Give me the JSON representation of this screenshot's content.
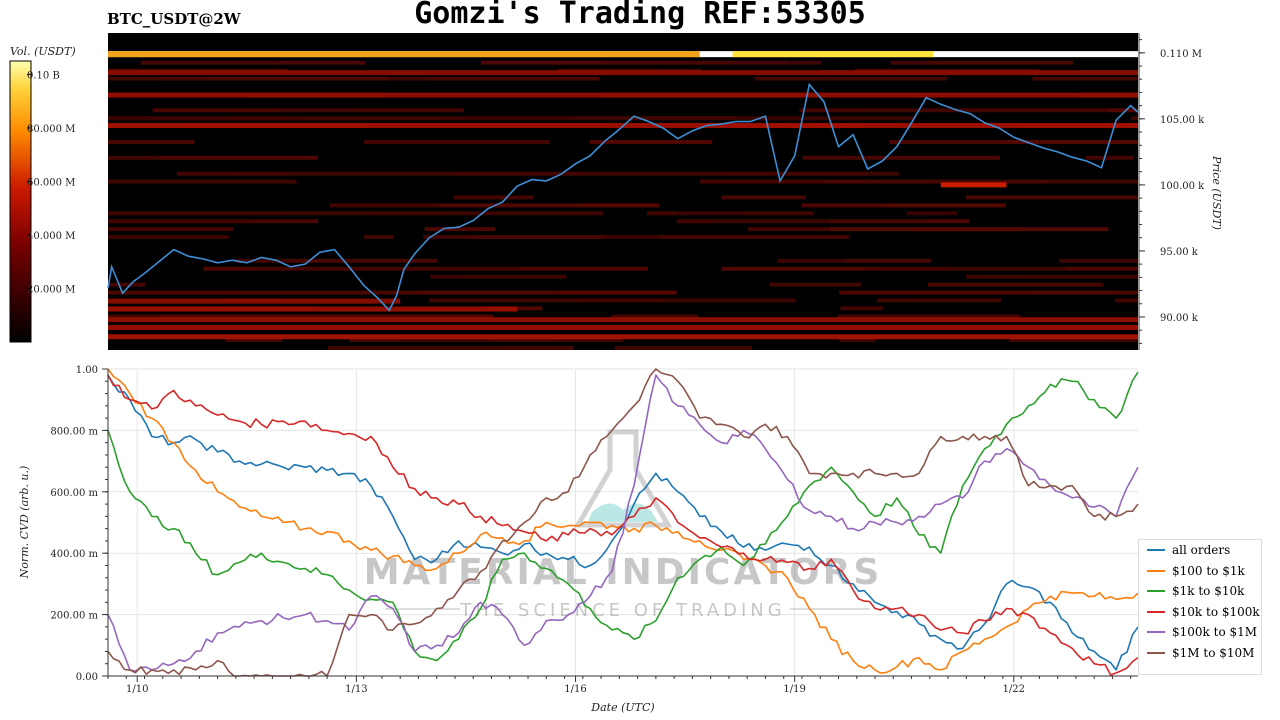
{
  "header": {
    "title": "Gomzi's Trading REF:53305",
    "symbol": "BTC_USDT@2W"
  },
  "colors": {
    "price_line": "#3c8fd6",
    "heatmap_bg": "#000000",
    "colorbar_low": "#000000",
    "colorbar_mid": "#cc1100",
    "colorbar_high": "#ffff66"
  },
  "watermark": {
    "line1": "MATERIAL INDICATORS",
    "line2": "THE SCIENCE OF TRADING"
  },
  "chart_data": [
    {
      "type": "heatmap",
      "name": "orderbook-heatmap",
      "title": "",
      "ylabel": "Price (USDT)",
      "ylim": [
        87500,
        111500
      ],
      "y_ticks": [
        90000,
        95000,
        100000,
        105000,
        110000
      ],
      "y_tick_labels": [
        "90.00 k",
        "95.00 k",
        "100.00 k",
        "105.00 k",
        "0.110 M"
      ],
      "colorbar": {
        "label": "Vol. (USDT)",
        "range": [
          0,
          105000000
        ],
        "ticks": [
          20000000,
          40000000,
          60000000,
          80000000,
          100000000
        ],
        "tick_labels": [
          "20.000 M",
          "40.000 M",
          "60.000 M",
          "80.000 M",
          "0.10 B"
        ]
      },
      "price_series": {
        "name": "",
        "x": [
          0,
          0.05,
          0.2,
          0.35,
          0.5,
          0.7,
          0.9,
          1.1,
          1.3,
          1.5,
          1.7,
          1.9,
          2.1,
          2.3,
          2.5,
          2.7,
          2.9,
          3.1,
          3.3,
          3.5,
          3.7,
          3.85,
          3.95,
          4.05,
          4.2,
          4.4,
          4.6,
          4.8,
          5.0,
          5.2,
          5.4,
          5.6,
          5.8,
          6.0,
          6.2,
          6.4,
          6.6,
          6.8,
          7.0,
          7.2,
          7.4,
          7.6,
          7.8,
          8.0,
          8.2,
          8.4,
          8.6,
          8.8,
          9.0,
          9.2,
          9.4,
          9.6,
          9.8,
          10.0,
          10.2,
          10.4,
          10.6,
          10.8,
          11.0,
          11.2,
          11.4,
          11.6,
          11.8,
          12.0,
          12.2,
          12.4,
          12.6,
          12.8,
          13.0,
          13.2,
          13.4,
          13.6,
          13.8,
          14.0,
          14.1
        ],
        "y": [
          92200,
          93800,
          91800,
          92700,
          93300,
          94200,
          95100,
          94600,
          94400,
          94100,
          94300,
          94100,
          94500,
          94300,
          93800,
          94000,
          94900,
          95100,
          93800,
          92400,
          91400,
          90500,
          91600,
          93600,
          94800,
          96000,
          96700,
          96800,
          97300,
          98200,
          98700,
          99900,
          100400,
          100300,
          100800,
          101600,
          102200,
          103300,
          104200,
          105200,
          104800,
          104300,
          103500,
          104100,
          104500,
          104600,
          104800,
          104800,
          105200,
          100300,
          102200,
          107600,
          106300,
          102900,
          103800,
          101200,
          101800,
          102900,
          104700,
          106600,
          106100,
          105700,
          105400,
          104700,
          104300,
          103600,
          103200,
          102800,
          102500,
          102100,
          101800,
          101300,
          104900,
          106000,
          105500
        ]
      },
      "top_band_price": 109900,
      "bands": [
        {
          "price": 88500,
          "start": 0,
          "end": 14.1,
          "intensity": 0.55
        },
        {
          "price": 89200,
          "start": 0,
          "end": 14.1,
          "intensity": 0.45
        },
        {
          "price": 89800,
          "start": 0,
          "end": 14.1,
          "intensity": 0.4
        },
        {
          "price": 90600,
          "start": 0,
          "end": 5.6,
          "intensity": 0.45
        },
        {
          "price": 91200,
          "start": 0,
          "end": 4.0,
          "intensity": 0.35
        },
        {
          "price": 100000,
          "start": 11.4,
          "end": 12.3,
          "intensity": 0.85
        },
        {
          "price": 104500,
          "start": 0,
          "end": 14.1,
          "intensity": 0.5
        },
        {
          "price": 106800,
          "start": 0,
          "end": 14.1,
          "intensity": 0.4
        },
        {
          "price": 108500,
          "start": 0,
          "end": 14.1,
          "intensity": 0.35
        }
      ]
    },
    {
      "type": "line",
      "name": "norm-cvd",
      "title": "",
      "xlabel": "Date (UTC)",
      "ylabel": "Norm. CVD (arb. u.)",
      "xlim": [
        0,
        14.1
      ],
      "ylim": [
        0,
        1
      ],
      "x_ticks": [
        0.4,
        3.4,
        6.4,
        9.4,
        12.4
      ],
      "x_tick_labels": [
        "1/10",
        "1/13",
        "1/16",
        "1/19",
        "1/22"
      ],
      "y_ticks": [
        0,
        0.2,
        0.4,
        0.6,
        0.8,
        1.0
      ],
      "y_tick_labels": [
        "0.00",
        "200.00 m",
        "400.00 m",
        "600.00 m",
        "800.00 m",
        "1.00"
      ],
      "grid": true,
      "legend": "right",
      "series": [
        {
          "name": "all orders",
          "color": "#1f77b4",
          "x": [
            0,
            0.3,
            0.6,
            0.9,
            1.2,
            1.5,
            1.8,
            2.1,
            2.4,
            2.7,
            3.0,
            3.3,
            3.6,
            3.9,
            4.2,
            4.5,
            4.8,
            5.1,
            5.4,
            5.7,
            6.0,
            6.3,
            6.6,
            6.9,
            7.2,
            7.5,
            7.8,
            8.1,
            8.4,
            8.7,
            9.0,
            9.3,
            9.6,
            9.9,
            10.2,
            10.5,
            10.8,
            11.1,
            11.4,
            11.7,
            12.0,
            12.3,
            12.6,
            12.9,
            13.2,
            13.5,
            13.8,
            14.1
          ],
          "y": [
            0.98,
            0.9,
            0.78,
            0.76,
            0.77,
            0.73,
            0.7,
            0.69,
            0.68,
            0.68,
            0.67,
            0.66,
            0.62,
            0.52,
            0.38,
            0.38,
            0.44,
            0.42,
            0.4,
            0.43,
            0.4,
            0.38,
            0.36,
            0.44,
            0.56,
            0.66,
            0.6,
            0.52,
            0.47,
            0.42,
            0.41,
            0.43,
            0.42,
            0.36,
            0.3,
            0.24,
            0.21,
            0.17,
            0.12,
            0.09,
            0.17,
            0.3,
            0.29,
            0.24,
            0.14,
            0.08,
            0.02,
            0.16
          ]
        },
        {
          "name": "$100 to $1k",
          "color": "#ff7f0e",
          "x": [
            0,
            0.3,
            0.6,
            0.9,
            1.2,
            1.5,
            1.8,
            2.1,
            2.4,
            2.7,
            3.0,
            3.3,
            3.6,
            3.9,
            4.2,
            4.5,
            4.8,
            5.1,
            5.4,
            5.7,
            6.0,
            6.3,
            6.6,
            6.9,
            7.2,
            7.5,
            7.8,
            8.1,
            8.4,
            8.7,
            9.0,
            9.3,
            9.6,
            9.9,
            10.2,
            10.5,
            10.8,
            11.1,
            11.4,
            11.7,
            12.0,
            12.3,
            12.6,
            12.9,
            13.2,
            13.5,
            13.8,
            14.1
          ],
          "y": [
            1.0,
            0.92,
            0.84,
            0.76,
            0.67,
            0.6,
            0.55,
            0.52,
            0.5,
            0.48,
            0.47,
            0.44,
            0.41,
            0.39,
            0.36,
            0.35,
            0.4,
            0.46,
            0.45,
            0.44,
            0.5,
            0.49,
            0.5,
            0.49,
            0.48,
            0.49,
            0.47,
            0.44,
            0.41,
            0.38,
            0.36,
            0.32,
            0.22,
            0.12,
            0.05,
            0.02,
            0.03,
            0.06,
            0.02,
            0.08,
            0.12,
            0.16,
            0.22,
            0.26,
            0.27,
            0.26,
            0.25,
            0.27
          ]
        },
        {
          "name": "$1k to $10k",
          "color": "#2ca02c",
          "x": [
            0,
            0.3,
            0.6,
            0.9,
            1.2,
            1.5,
            1.8,
            2.1,
            2.4,
            2.7,
            3.0,
            3.3,
            3.6,
            3.9,
            4.2,
            4.5,
            4.8,
            5.1,
            5.4,
            5.7,
            6.0,
            6.3,
            6.6,
            6.9,
            7.2,
            7.5,
            7.8,
            8.1,
            8.4,
            8.7,
            9.0,
            9.3,
            9.6,
            9.9,
            10.2,
            10.5,
            10.8,
            11.1,
            11.4,
            11.7,
            12.0,
            12.3,
            12.6,
            12.9,
            13.2,
            13.5,
            13.8,
            14.1
          ],
          "y": [
            0.8,
            0.6,
            0.52,
            0.48,
            0.4,
            0.33,
            0.37,
            0.4,
            0.37,
            0.35,
            0.33,
            0.28,
            0.25,
            0.24,
            0.08,
            0.05,
            0.12,
            0.22,
            0.38,
            0.4,
            0.35,
            0.3,
            0.22,
            0.15,
            0.12,
            0.18,
            0.32,
            0.38,
            0.42,
            0.36,
            0.43,
            0.52,
            0.62,
            0.68,
            0.6,
            0.52,
            0.58,
            0.46,
            0.4,
            0.62,
            0.74,
            0.82,
            0.88,
            0.95,
            0.96,
            0.9,
            0.84,
            0.99
          ]
        },
        {
          "name": "$10k to $100k",
          "color": "#d62728",
          "x": [
            0,
            0.3,
            0.6,
            0.9,
            1.2,
            1.5,
            1.8,
            2.1,
            2.4,
            2.7,
            3.0,
            3.3,
            3.6,
            3.9,
            4.2,
            4.5,
            4.8,
            5.1,
            5.4,
            5.7,
            6.0,
            6.3,
            6.6,
            6.9,
            7.2,
            7.5,
            7.8,
            8.1,
            8.4,
            8.7,
            9.0,
            9.3,
            9.6,
            9.9,
            10.2,
            10.5,
            10.8,
            11.1,
            11.4,
            11.7,
            12.0,
            12.3,
            12.6,
            12.9,
            13.2,
            13.5,
            13.8,
            14.1
          ],
          "y": [
            0.98,
            0.9,
            0.87,
            0.93,
            0.88,
            0.85,
            0.83,
            0.82,
            0.83,
            0.83,
            0.8,
            0.79,
            0.78,
            0.68,
            0.61,
            0.58,
            0.56,
            0.52,
            0.49,
            0.47,
            0.44,
            0.46,
            0.48,
            0.46,
            0.52,
            0.58,
            0.5,
            0.45,
            0.42,
            0.4,
            0.38,
            0.37,
            0.35,
            0.38,
            0.28,
            0.22,
            0.22,
            0.2,
            0.15,
            0.14,
            0.18,
            0.22,
            0.2,
            0.14,
            0.09,
            0.04,
            0.01,
            0.06
          ]
        },
        {
          "name": "$100k to $1M",
          "color": "#9467bd",
          "x": [
            0,
            0.3,
            0.6,
            0.9,
            1.2,
            1.5,
            1.8,
            2.1,
            2.4,
            2.7,
            3.0,
            3.3,
            3.6,
            3.9,
            4.2,
            4.5,
            4.8,
            5.1,
            5.4,
            5.7,
            6.0,
            6.3,
            6.6,
            6.9,
            7.2,
            7.5,
            7.8,
            8.1,
            8.4,
            8.7,
            9.0,
            9.3,
            9.6,
            9.9,
            10.2,
            10.5,
            10.8,
            11.1,
            11.4,
            11.7,
            12.0,
            12.3,
            12.6,
            12.9,
            13.2,
            13.5,
            13.8,
            14.1
          ],
          "y": [
            0.2,
            0.02,
            0.02,
            0.04,
            0.08,
            0.14,
            0.16,
            0.18,
            0.19,
            0.2,
            0.18,
            0.15,
            0.26,
            0.22,
            0.08,
            0.1,
            0.14,
            0.24,
            0.2,
            0.1,
            0.18,
            0.2,
            0.26,
            0.34,
            0.62,
            0.98,
            0.88,
            0.82,
            0.76,
            0.8,
            0.74,
            0.64,
            0.54,
            0.52,
            0.48,
            0.5,
            0.5,
            0.52,
            0.56,
            0.58,
            0.7,
            0.74,
            0.68,
            0.62,
            0.58,
            0.55,
            0.52,
            0.68
          ]
        },
        {
          "name": "$1M to $10M",
          "color": "#8c564b",
          "x": [
            0,
            0.3,
            0.6,
            0.9,
            1.2,
            1.5,
            1.8,
            2.1,
            2.4,
            2.7,
            3.0,
            3.3,
            3.6,
            3.9,
            4.2,
            4.5,
            4.8,
            5.1,
            5.4,
            5.7,
            6.0,
            6.3,
            6.6,
            6.9,
            7.2,
            7.5,
            7.8,
            8.1,
            8.4,
            8.7,
            9.0,
            9.3,
            9.6,
            9.9,
            10.2,
            10.5,
            10.8,
            11.1,
            11.4,
            11.7,
            12.0,
            12.3,
            12.6,
            12.9,
            13.2,
            13.5,
            13.8,
            14.1
          ],
          "y": [
            0.08,
            0.02,
            0.02,
            0.02,
            0.02,
            0.05,
            0.0,
            0.0,
            0.0,
            0.0,
            0.0,
            0.2,
            0.2,
            0.15,
            0.17,
            0.22,
            0.28,
            0.34,
            0.44,
            0.5,
            0.58,
            0.6,
            0.72,
            0.8,
            0.88,
            1.0,
            0.96,
            0.84,
            0.82,
            0.78,
            0.82,
            0.78,
            0.66,
            0.66,
            0.66,
            0.66,
            0.66,
            0.66,
            0.78,
            0.78,
            0.78,
            0.78,
            0.62,
            0.62,
            0.62,
            0.52,
            0.52,
            0.56
          ]
        }
      ]
    }
  ]
}
